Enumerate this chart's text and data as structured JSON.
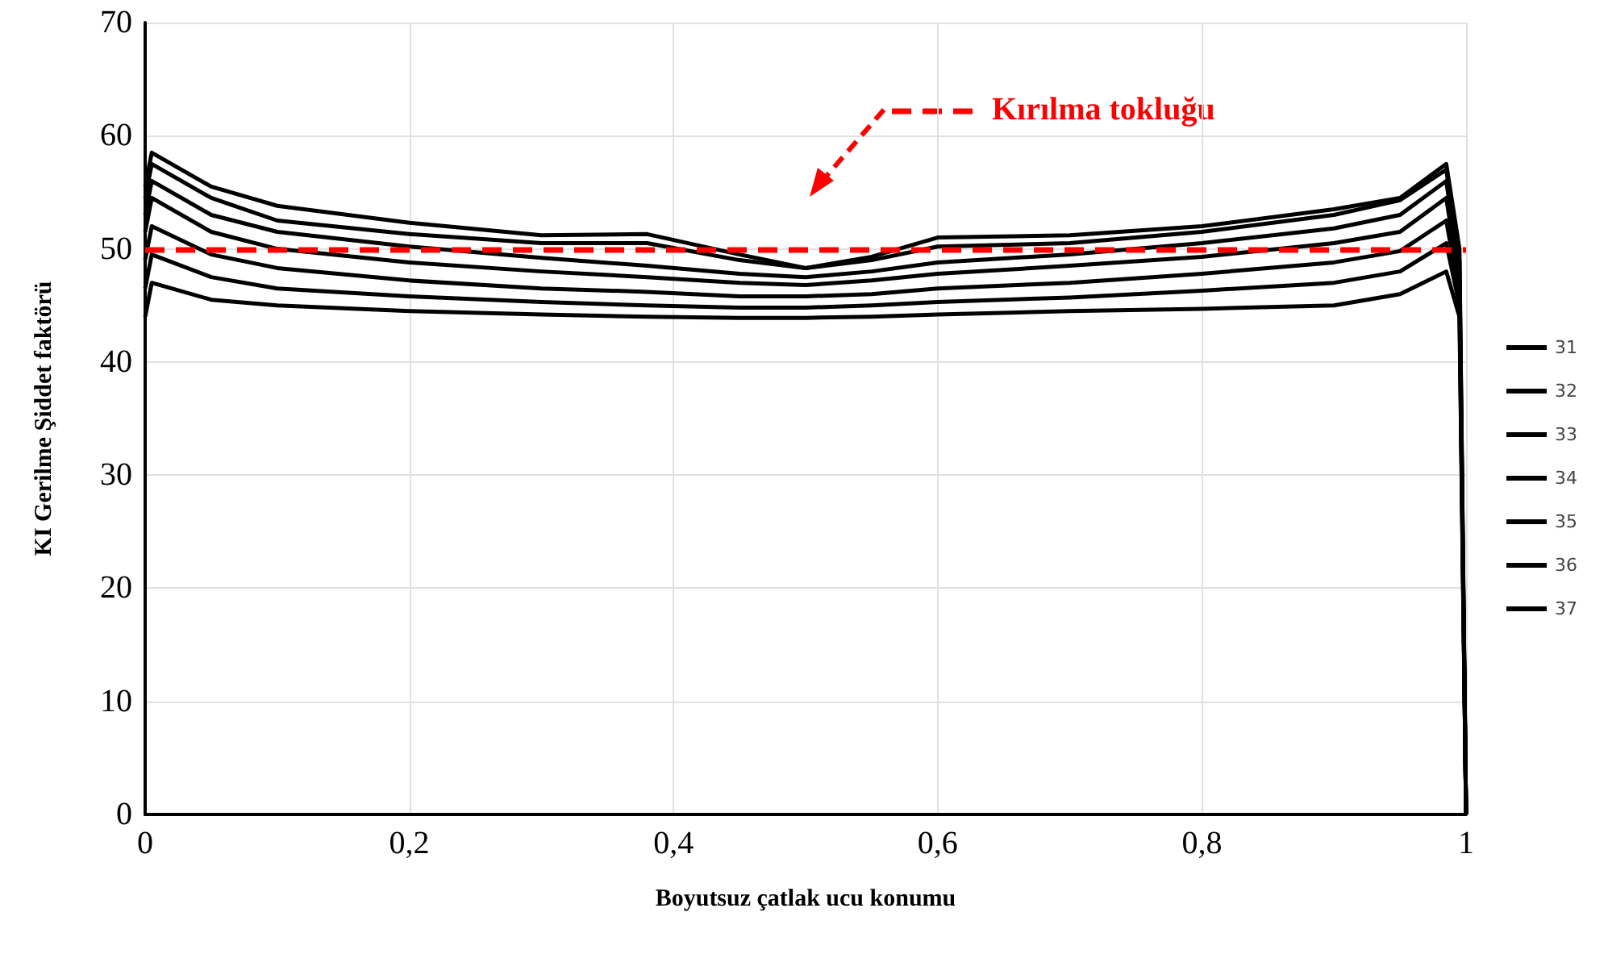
{
  "chart_data": {
    "type": "line",
    "xlabel": "Boyutsuz çatlak ucu konumu",
    "ylabel": "KI Gerilme Şiddet faktörü",
    "x": [
      0,
      0.005,
      0.05,
      0.1,
      0.2,
      0.3,
      0.38,
      0.45,
      0.5,
      0.55,
      0.6,
      0.7,
      0.8,
      0.9,
      0.95,
      0.985,
      0.995,
      1
    ],
    "series": [
      {
        "name": "31",
        "color": "#000000",
        "values": [
          55.5,
          58.5,
          55.5,
          53.8,
          52.3,
          51.2,
          51.3,
          49.5,
          48.3,
          49.3,
          51,
          51.2,
          52,
          53.5,
          54.5,
          57.5,
          50,
          0
        ]
      },
      {
        "name": "32",
        "color": "#000000",
        "values": [
          54.5,
          57.5,
          54.5,
          52.5,
          51.3,
          50.5,
          50.5,
          49,
          48.3,
          49,
          50.2,
          50.5,
          51.5,
          53,
          54.3,
          57,
          49,
          0
        ]
      },
      {
        "name": "33",
        "color": "#000000",
        "values": [
          53,
          56,
          53,
          51.5,
          50.2,
          49.2,
          48.5,
          47.8,
          47.5,
          48,
          48.8,
          49.5,
          50.5,
          51.8,
          53,
          56,
          48,
          0
        ]
      },
      {
        "name": "34",
        "color": "#000000",
        "values": [
          51.5,
          54.5,
          51.5,
          50,
          48.8,
          48,
          47.5,
          47,
          46.8,
          47.2,
          47.8,
          48.5,
          49.3,
          50.5,
          51.5,
          54.5,
          47,
          0
        ]
      },
      {
        "name": "35",
        "color": "#000000",
        "values": [
          49,
          52,
          49.5,
          48.3,
          47.2,
          46.5,
          46.2,
          45.8,
          45.8,
          46,
          46.5,
          47,
          47.8,
          48.8,
          49.8,
          52.5,
          46,
          0
        ]
      },
      {
        "name": "36",
        "color": "#000000",
        "values": [
          46.5,
          49.5,
          47.5,
          46.5,
          45.8,
          45.3,
          45,
          44.8,
          44.8,
          45,
          45.3,
          45.7,
          46.3,
          47,
          48,
          50.5,
          45,
          0
        ]
      },
      {
        "name": "37",
        "color": "#000000",
        "values": [
          44,
          47,
          45.5,
          45,
          44.5,
          44.2,
          44,
          43.9,
          43.9,
          44,
          44.2,
          44.5,
          44.7,
          45,
          46,
          48,
          44,
          0
        ]
      }
    ],
    "xlim": [
      0,
      1
    ],
    "xticks": [
      0,
      {
        "value": 0.2,
        "label": "0,2"
      },
      {
        "value": 0.4,
        "label": "0,4"
      },
      {
        "value": 0.6,
        "label": "0,6"
      },
      {
        "value": 0.8,
        "label": "0,8"
      },
      1
    ],
    "ylim": [
      0,
      70
    ],
    "yticks": [
      0,
      10,
      20,
      30,
      40,
      50,
      60,
      70
    ],
    "ref_lines": [
      {
        "axis": "y",
        "value": 50,
        "label": "Kırılma tokluğu",
        "color": "#ff0000",
        "line_style": "dashed"
      }
    ],
    "grid": true,
    "legend": "right",
    "marker": "none",
    "line_style": "solid"
  }
}
